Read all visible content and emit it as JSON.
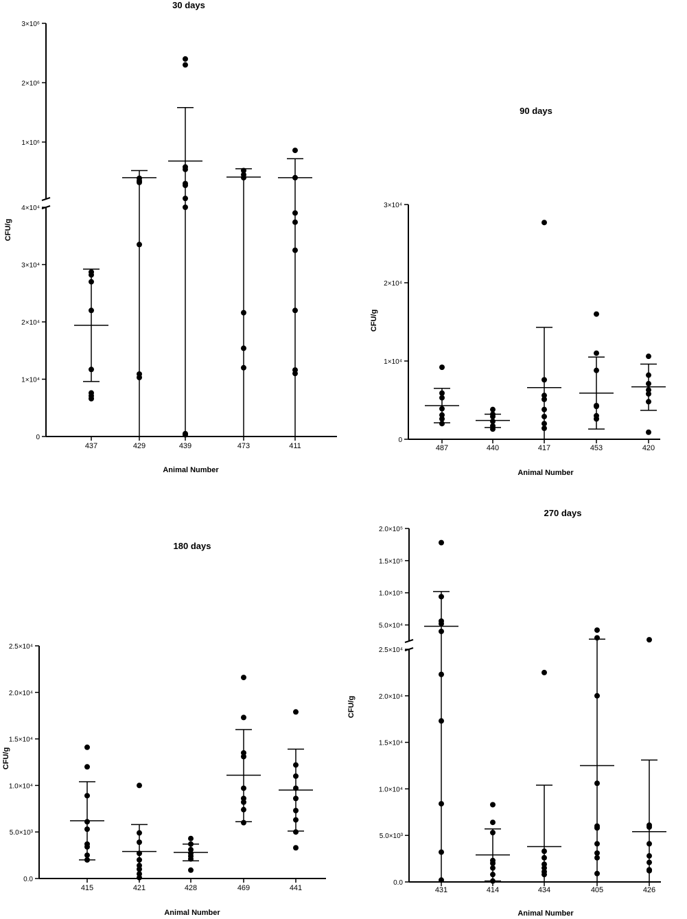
{
  "chart_data": [
    {
      "type": "scatter",
      "title": "30 days",
      "xlabel": "Animal Number",
      "ylabel": "CFU/g",
      "categories": [
        "437",
        "429",
        "439",
        "473",
        "411"
      ],
      "axis_break": true,
      "lower_axis": {
        "ylim": [
          0,
          40000
        ],
        "ticks": [
          0,
          10000,
          20000,
          30000,
          40000
        ],
        "tick_labels": [
          "0",
          "1×10⁴",
          "2×10⁴",
          "3×10⁴",
          "4×10⁴"
        ]
      },
      "upper_axis": {
        "ylim": [
          40000,
          3000000
        ],
        "ticks": [
          1000000,
          2000000,
          3000000
        ],
        "tick_labels": [
          "1×10⁶",
          "2×10⁶",
          "3×10⁶"
        ]
      },
      "points": [
        [
          6600,
          7100,
          7600,
          11700,
          22000,
          27000,
          28200,
          28700
        ],
        [
          10300,
          10900,
          33500,
          320000,
          345000,
          390000
        ],
        [
          300,
          500,
          40000,
          50000,
          270000,
          300000,
          540000,
          580000,
          2300000,
          2400000
        ],
        [
          12000,
          15400,
          21600,
          400000,
          450000,
          520000
        ],
        [
          11000,
          11600,
          22000,
          32500,
          37400,
          39000,
          400000,
          860000
        ]
      ],
      "mean": [
        19400,
        400000,
        680000,
        410000,
        400000
      ],
      "error_upper": [
        29200,
        520000,
        1580000,
        550000,
        720000
      ],
      "error_lower": [
        9600,
        0,
        0,
        0,
        0
      ]
    },
    {
      "type": "scatter",
      "title": "90 days",
      "xlabel": "Animal Number",
      "ylabel": "CFU/g",
      "categories": [
        "487",
        "440",
        "417",
        "453",
        "420"
      ],
      "axis_break": false,
      "lower_axis": {
        "ylim": [
          0,
          30000
        ],
        "ticks": [
          0,
          10000,
          20000,
          30000
        ],
        "tick_labels": [
          "0",
          "1×10⁴",
          "2×10⁴",
          "3×10⁴"
        ]
      },
      "points": [
        [
          2000,
          2600,
          3100,
          3900,
          5300,
          5900,
          9200
        ],
        [
          1300,
          1700,
          2300,
          2900,
          3200,
          3800
        ],
        [
          1400,
          2000,
          2900,
          3800,
          5100,
          5600,
          7600,
          27700
        ],
        [
          2600,
          3000,
          4200,
          4300,
          8800,
          11000,
          16000
        ],
        [
          900,
          4800,
          5800,
          6300,
          7100,
          8200,
          10600
        ]
      ],
      "mean": [
        4300,
        2400,
        6600,
        5900,
        6700
      ],
      "error_upper": [
        6500,
        3200,
        14300,
        10500,
        9600
      ],
      "error_lower": [
        2100,
        1500,
        0,
        1300,
        3700
      ]
    },
    {
      "type": "scatter",
      "title": "180 days",
      "xlabel": "Animal Number",
      "ylabel": "CFU/g",
      "categories": [
        "415",
        "421",
        "428",
        "469",
        "441"
      ],
      "axis_break": false,
      "lower_axis": {
        "ylim": [
          0,
          25000
        ],
        "ticks": [
          0,
          5000,
          10000,
          15000,
          20000,
          25000
        ],
        "tick_labels": [
          "0.0",
          "5.0×10³",
          "1.0×10⁴",
          "1.5×10⁴",
          "2.0×10⁴",
          "2.5×10⁴"
        ]
      },
      "points": [
        [
          2000,
          2500,
          3400,
          3700,
          5300,
          6100,
          8900,
          12000,
          14100
        ],
        [
          100,
          500,
          1000,
          1400,
          2000,
          2700,
          3900,
          4900,
          10000
        ],
        [
          900,
          2100,
          2400,
          2700,
          3100,
          3700,
          4300
        ],
        [
          6000,
          7400,
          8200,
          8600,
          9700,
          13100,
          13500,
          17300,
          21600
        ],
        [
          3300,
          5000,
          6300,
          7300,
          8600,
          9700,
          11000,
          12200,
          17900
        ]
      ],
      "mean": [
        6200,
        2900,
        2800,
        11100,
        9500
      ],
      "error_upper": [
        10400,
        5800,
        3700,
        16000,
        13900
      ],
      "error_lower": [
        2000,
        0,
        1900,
        6100,
        5100
      ]
    },
    {
      "type": "scatter",
      "title": "270 days",
      "xlabel": "Animal Number",
      "ylabel": "CFU/g",
      "categories": [
        "431",
        "414",
        "434",
        "405",
        "426"
      ],
      "axis_break": true,
      "lower_axis": {
        "ylim": [
          0,
          25000
        ],
        "ticks": [
          0,
          5000,
          10000,
          15000,
          20000,
          25000
        ],
        "tick_labels": [
          "0.0",
          "5.0×10³",
          "1.0×10⁴",
          "1.5×10⁴",
          "2.0×10⁴",
          "2.5×10⁴"
        ]
      },
      "upper_axis": {
        "ylim": [
          25000,
          200000
        ],
        "ticks": [
          50000,
          100000,
          150000,
          200000
        ],
        "tick_labels": [
          "5.0×10⁴",
          "1.0×10⁵",
          "1.5×10⁵",
          "2.0×10⁵"
        ]
      },
      "points": [
        [
          200,
          3200,
          8400,
          17300,
          22300,
          40000,
          52000,
          56000,
          94000,
          178000
        ],
        [
          100,
          800,
          1500,
          2000,
          2300,
          5300,
          6400,
          8300
        ],
        [
          800,
          1100,
          1500,
          1900,
          2600,
          3300,
          22500
        ],
        [
          900,
          2600,
          3100,
          4100,
          5800,
          6000,
          10600,
          20000,
          30000,
          42000
        ],
        [
          1200,
          1300,
          2100,
          2800,
          4100,
          5900,
          6100,
          27000
        ]
      ],
      "mean": [
        48000,
        2900,
        3800,
        12500,
        5400
      ],
      "error_upper": [
        102000,
        5700,
        10400,
        28000,
        13100
      ],
      "error_lower": [
        0,
        100,
        0,
        0,
        0
      ]
    }
  ]
}
